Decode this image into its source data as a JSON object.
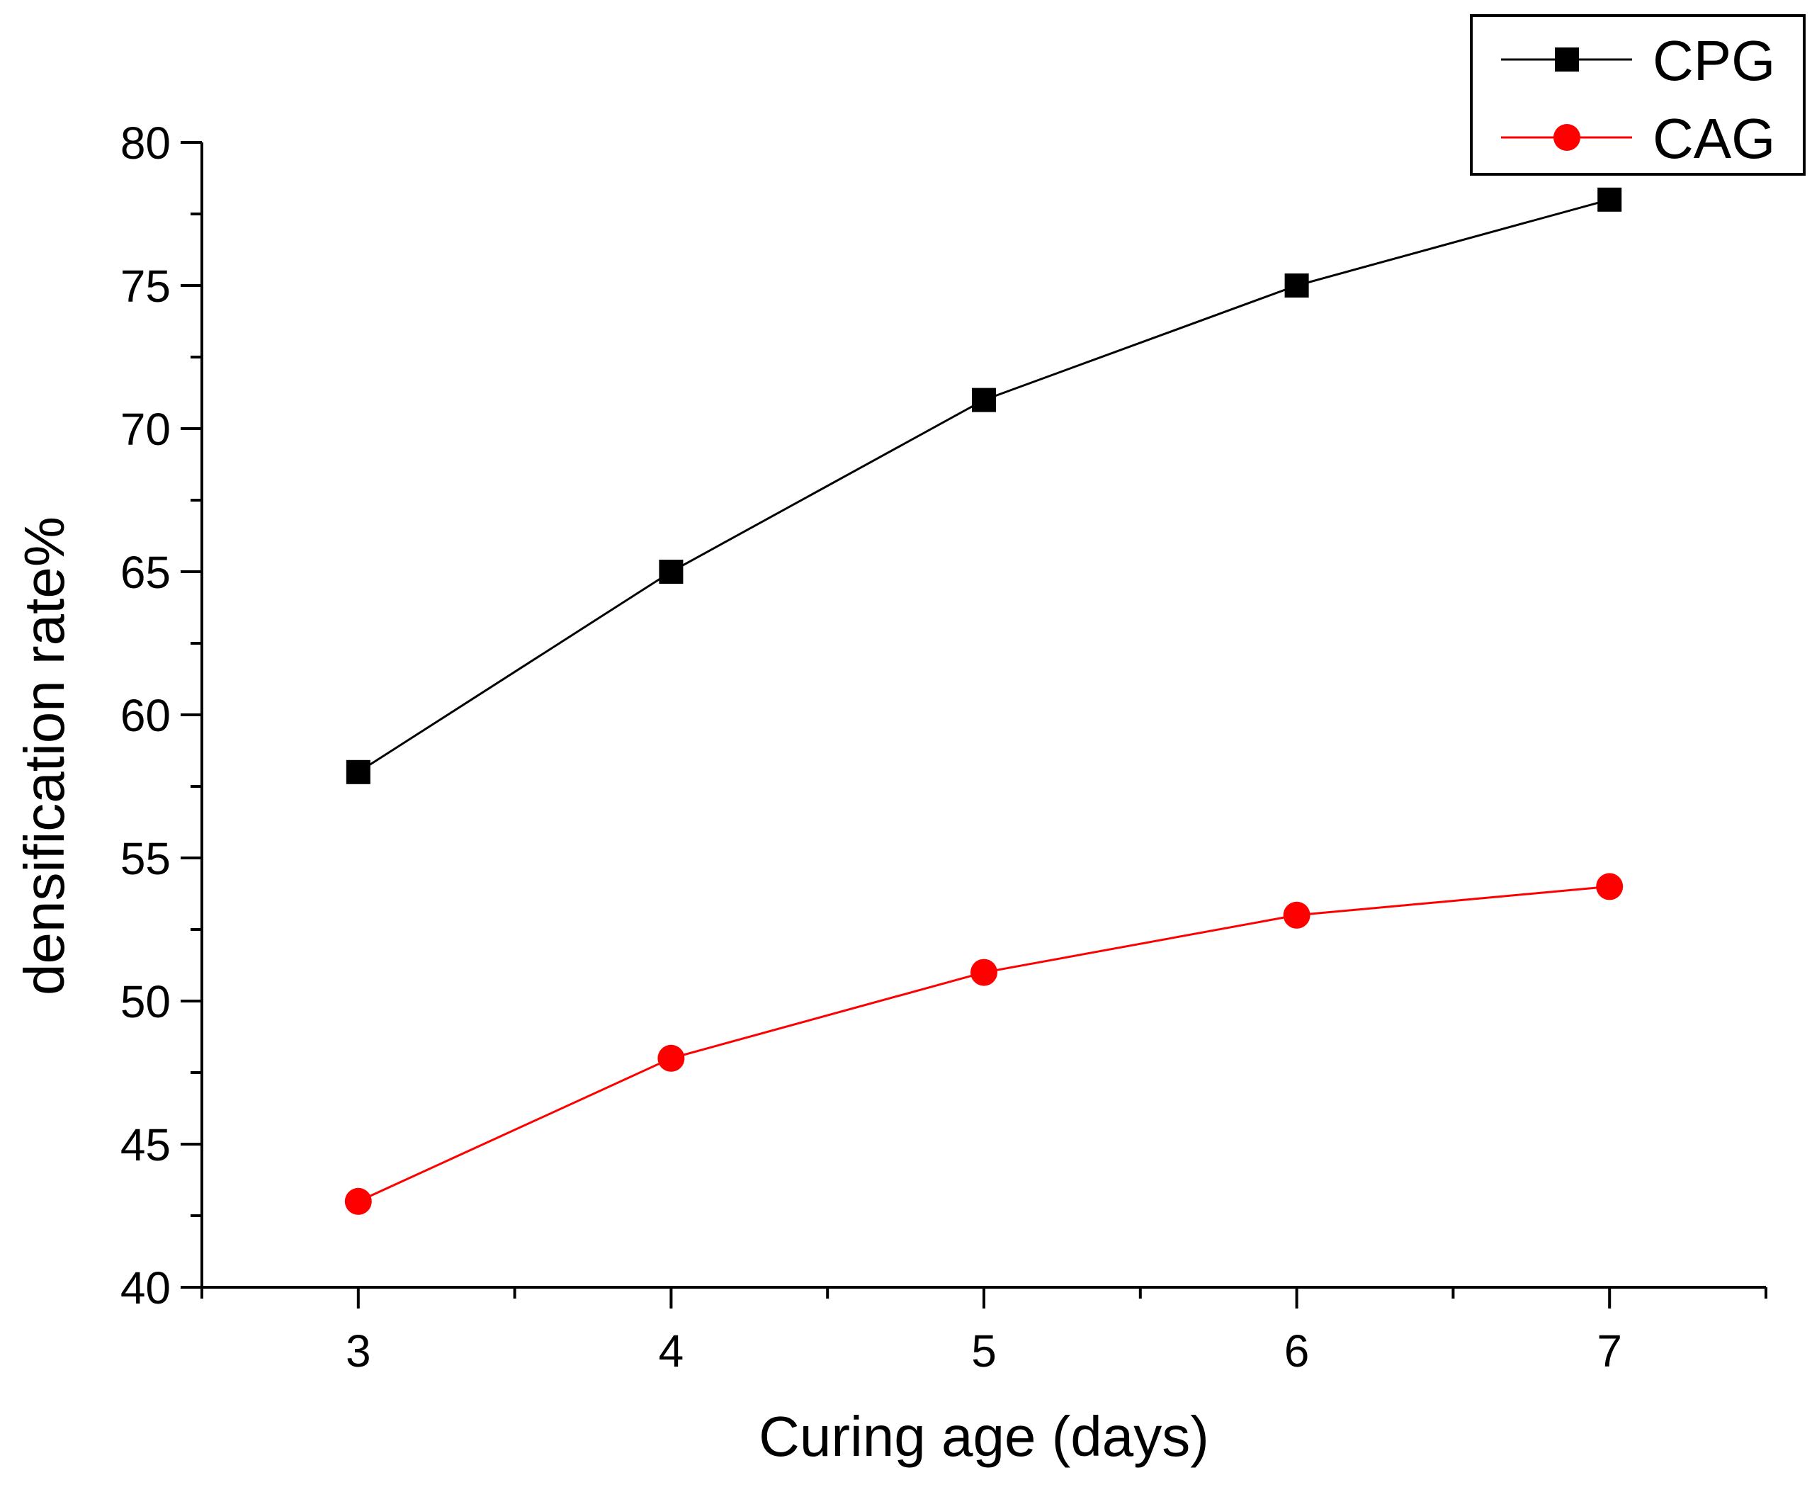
{
  "chart_data": {
    "type": "line",
    "title": "",
    "xlabel": "Curing age (days)",
    "ylabel": "densification rate%",
    "x": [
      3,
      4,
      5,
      6,
      7
    ],
    "xlim": [
      2.5,
      7.5
    ],
    "ylim": [
      40,
      80
    ],
    "x_ticks": [
      3,
      4,
      5,
      6,
      7
    ],
    "y_ticks": [
      40,
      45,
      50,
      55,
      60,
      65,
      70,
      75,
      80
    ],
    "grid": false,
    "legend_position": "top-right",
    "series": [
      {
        "name": "CPG",
        "marker": "square",
        "color": "#000000",
        "values": [
          58,
          65,
          71,
          75,
          78
        ]
      },
      {
        "name": "CAG",
        "marker": "circle",
        "color": "#ff0000",
        "values": [
          43,
          48,
          51,
          53,
          54
        ]
      }
    ]
  }
}
